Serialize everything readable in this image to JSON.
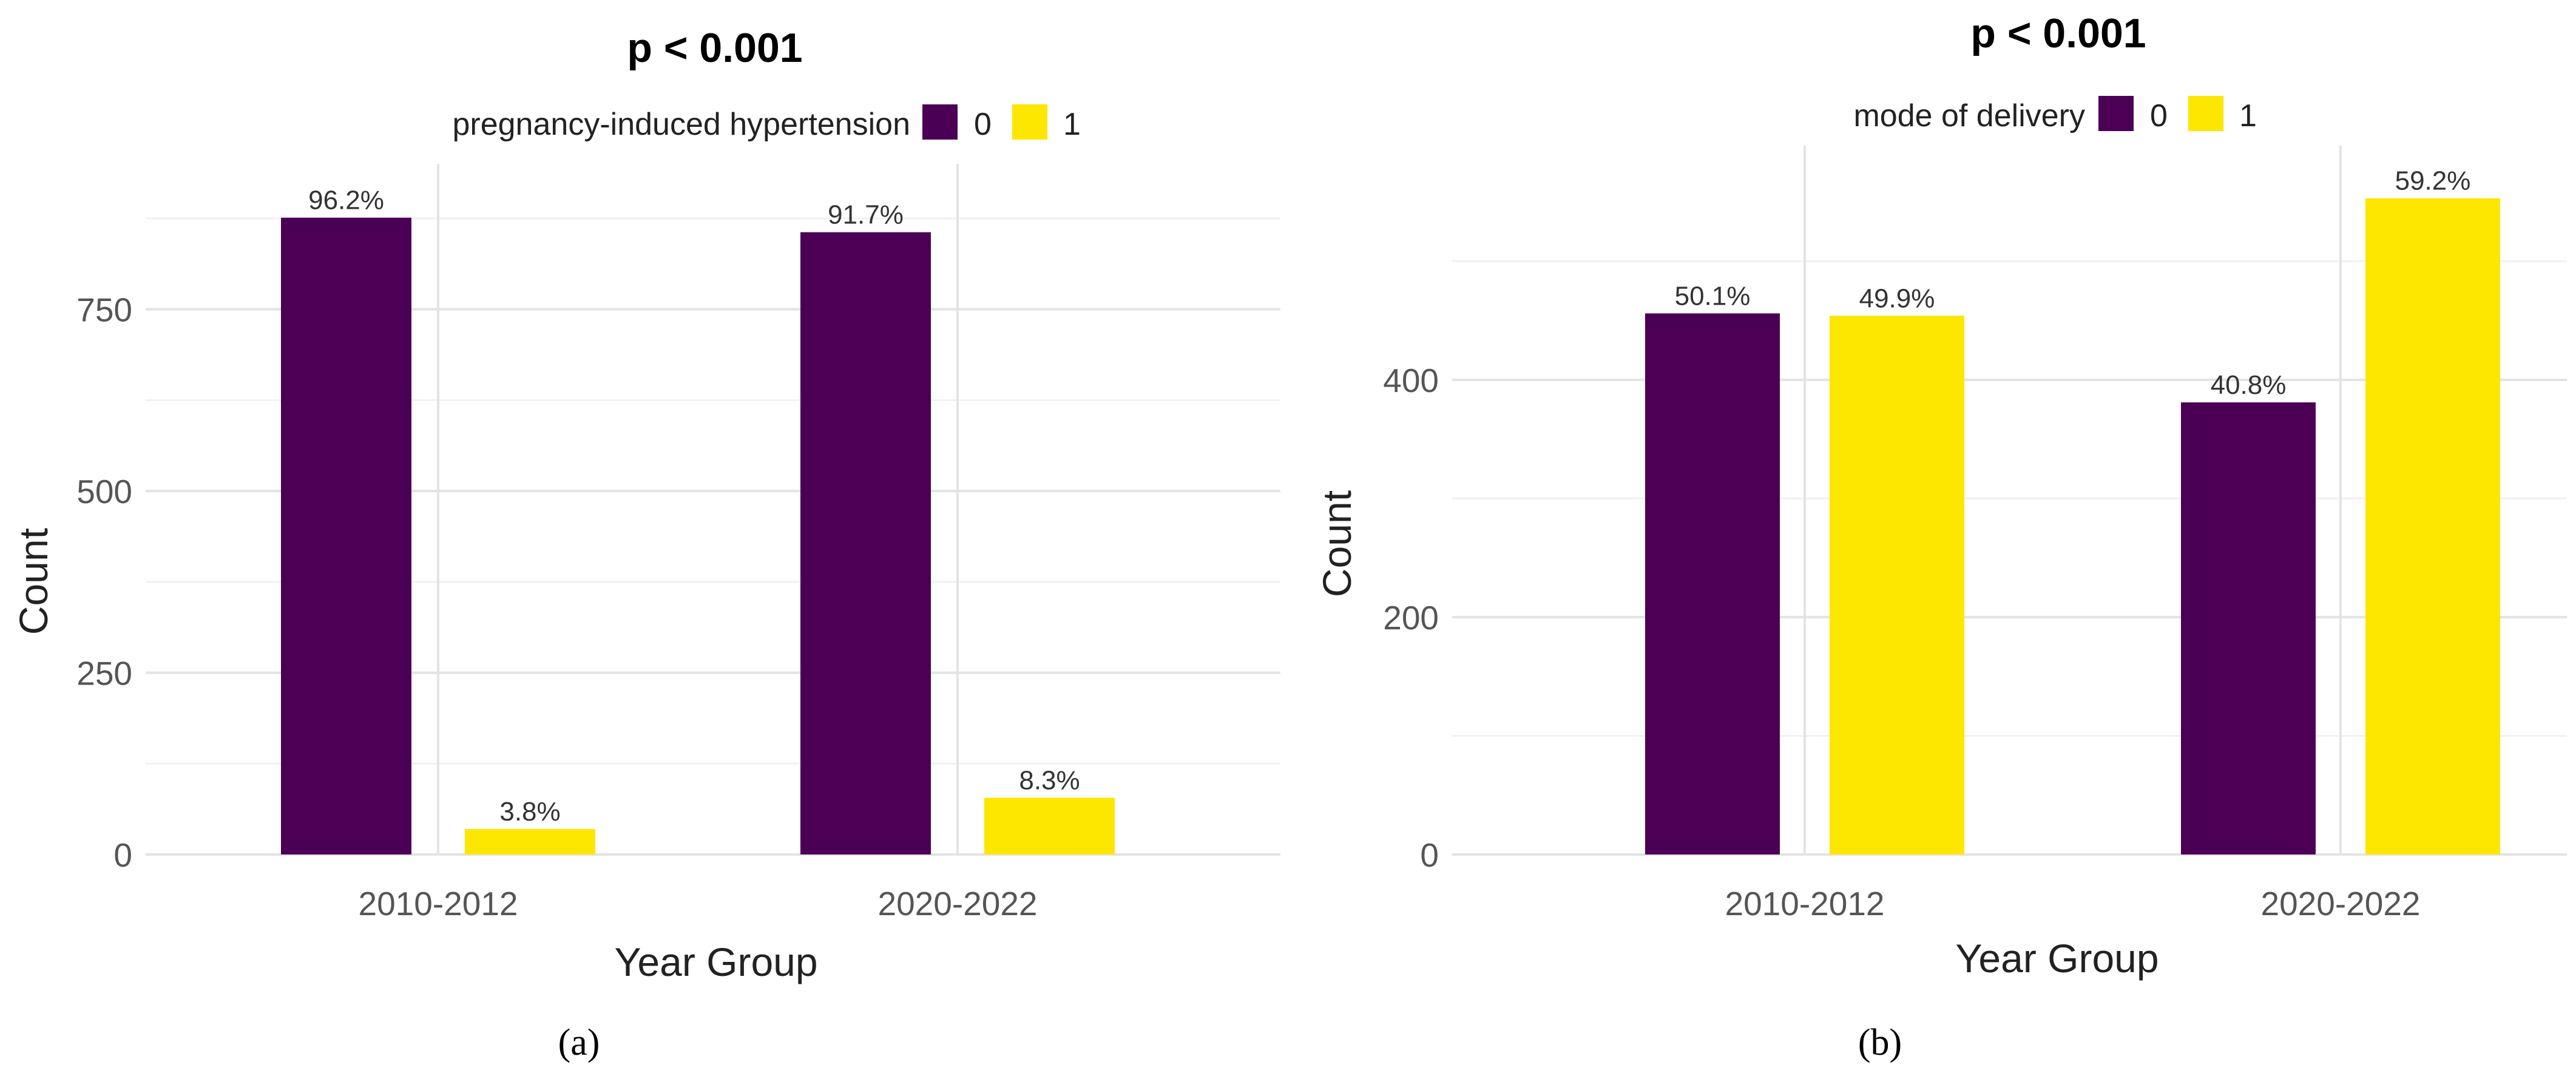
{
  "chart_data": [
    {
      "type": "bar",
      "panel_label": "(a)",
      "title": "p < 0.001",
      "legend_title": "pregnancy-induced hypertension",
      "legend_position": "top",
      "categories": [
        "2010-2012",
        "2020-2022"
      ],
      "series": [
        {
          "name": "0",
          "color": "#4B0055",
          "values": [
            876,
            856
          ],
          "labels": [
            "96.2%",
            "91.7%"
          ]
        },
        {
          "name": "1",
          "color": "#FDE600",
          "values": [
            35,
            78
          ],
          "labels": [
            "3.8%",
            "8.3%"
          ]
        }
      ],
      "xlabel": "Year Group",
      "ylabel": "Count",
      "ylim": [
        0,
        925
      ],
      "yticks": [
        0,
        250,
        500,
        750
      ],
      "grid": true
    },
    {
      "type": "bar",
      "panel_label": "(b)",
      "title": "p < 0.001",
      "legend_title": "mode of delivery",
      "legend_position": "top",
      "categories": [
        "2010-2012",
        "2020-2022"
      ],
      "series": [
        {
          "name": "0",
          "color": "#4B0055",
          "values": [
            456,
            381
          ],
          "labels": [
            "50.1%",
            "40.8%"
          ]
        },
        {
          "name": "1",
          "color": "#FDE600",
          "values": [
            454,
            553
          ],
          "labels": [
            "49.9%",
            "59.2%"
          ]
        }
      ],
      "xlabel": "Year Group",
      "ylabel": "Count",
      "ylim": [
        0,
        582
      ],
      "yticks": [
        0,
        200,
        400
      ],
      "grid": true
    }
  ]
}
